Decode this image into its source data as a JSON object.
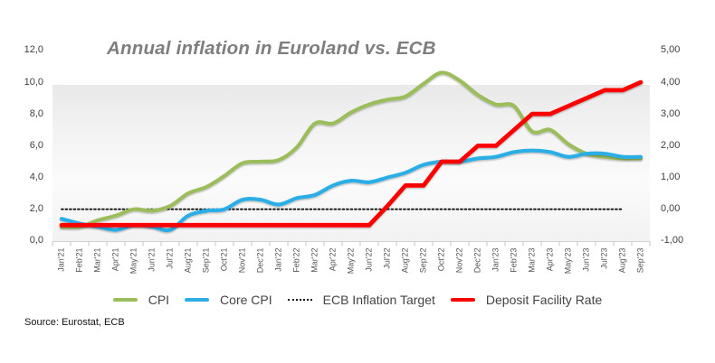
{
  "source": "Source: Eurostat, ECB",
  "chart_data": {
    "type": "line",
    "title": "Annual inflation in Euroland vs. ECB",
    "legend_position": "bottom",
    "grid": false,
    "x_labels": [
      "Jan'21",
      "Feb'21",
      "Mar'21",
      "Apr'21",
      "May'21",
      "Jun'21",
      "Jul'21",
      "Aug'21",
      "Sep'21",
      "Oct'21",
      "Nov'21",
      "Dec'21",
      "Jan'22",
      "Feb'22",
      "Mar'22",
      "Apr'22",
      "May'22",
      "Jun'22",
      "Jul'22",
      "Aug'22",
      "Sep'22",
      "Oct'22",
      "Nov'22",
      "Dec'22",
      "Jan'23",
      "Feb'23",
      "Mar'23",
      "Apr'23",
      "May'23",
      "Jun'23",
      "Jul'23",
      "Aug'23",
      "Sep'23"
    ],
    "left_axis": {
      "min": 0,
      "max": 12,
      "ticks": [
        {
          "label": "12,0",
          "value": 12
        },
        {
          "label": "10,0",
          "value": 10
        },
        {
          "label": "8,0",
          "value": 8
        },
        {
          "label": "6,0",
          "value": 6
        },
        {
          "label": "4,0",
          "value": 4
        },
        {
          "label": "2,0",
          "value": 2
        },
        {
          "label": "0,0",
          "value": 0
        }
      ]
    },
    "right_axis": {
      "min": -1,
      "max": 5,
      "ticks": [
        {
          "label": "5,00",
          "value": 5
        },
        {
          "label": "4,00",
          "value": 4
        },
        {
          "label": "3,00",
          "value": 3
        },
        {
          "label": "2,00",
          "value": 2
        },
        {
          "label": "1,00",
          "value": 1
        },
        {
          "label": "0,00",
          "value": 0
        },
        {
          "label": "-1,00",
          "value": -1
        }
      ]
    },
    "series": [
      {
        "name": "CPI",
        "axis": "left",
        "color": "#9cbd5b",
        "width": 4.2,
        "smooth": true,
        "dotted": false,
        "values": [
          0.9,
          0.9,
          1.3,
          1.6,
          2.0,
          1.9,
          2.2,
          3.0,
          3.4,
          4.1,
          4.9,
          5.0,
          5.1,
          5.9,
          7.4,
          7.4,
          8.1,
          8.6,
          8.9,
          9.1,
          9.9,
          10.6,
          10.1,
          9.2,
          8.6,
          8.5,
          6.9,
          7.0,
          6.1,
          5.5,
          5.3,
          5.2,
          5.2
        ]
      },
      {
        "name": "Core CPI",
        "axis": "left",
        "color": "#2caee5",
        "width": 4.2,
        "smooth": true,
        "dotted": false,
        "values": [
          1.4,
          1.1,
          0.9,
          0.7,
          1.0,
          0.9,
          0.7,
          1.6,
          1.9,
          2.0,
          2.6,
          2.6,
          2.3,
          2.7,
          2.9,
          3.5,
          3.8,
          3.7,
          4.0,
          4.3,
          4.8,
          5.0,
          5.0,
          5.2,
          5.3,
          5.6,
          5.7,
          5.6,
          5.3,
          5.5,
          5.5,
          5.3,
          5.3
        ]
      },
      {
        "name": "ECB Inflation Target",
        "axis": "left",
        "color": "#111111",
        "width": 1.9,
        "smooth": false,
        "dotted": true,
        "values": [
          2,
          2,
          2,
          2,
          2,
          2,
          2,
          2,
          2,
          2,
          2,
          2,
          2,
          2,
          2,
          2,
          2,
          2,
          2,
          2,
          2,
          2,
          2,
          2,
          2,
          2,
          2,
          2,
          2,
          2,
          2,
          2,
          null
        ]
      },
      {
        "name": "Deposit Facility Rate",
        "axis": "right",
        "color": "#fc0000",
        "width": 4.8,
        "smooth": false,
        "dotted": false,
        "values": [
          -0.5,
          -0.5,
          -0.5,
          -0.5,
          -0.5,
          -0.5,
          -0.5,
          -0.5,
          -0.5,
          -0.5,
          -0.5,
          -0.5,
          -0.5,
          -0.5,
          -0.5,
          -0.5,
          -0.5,
          -0.5,
          0.1,
          0.75,
          0.75,
          1.5,
          1.5,
          2.0,
          2.0,
          2.5,
          3.0,
          3.0,
          3.25,
          3.5,
          3.75,
          3.75,
          4.0
        ]
      }
    ]
  }
}
